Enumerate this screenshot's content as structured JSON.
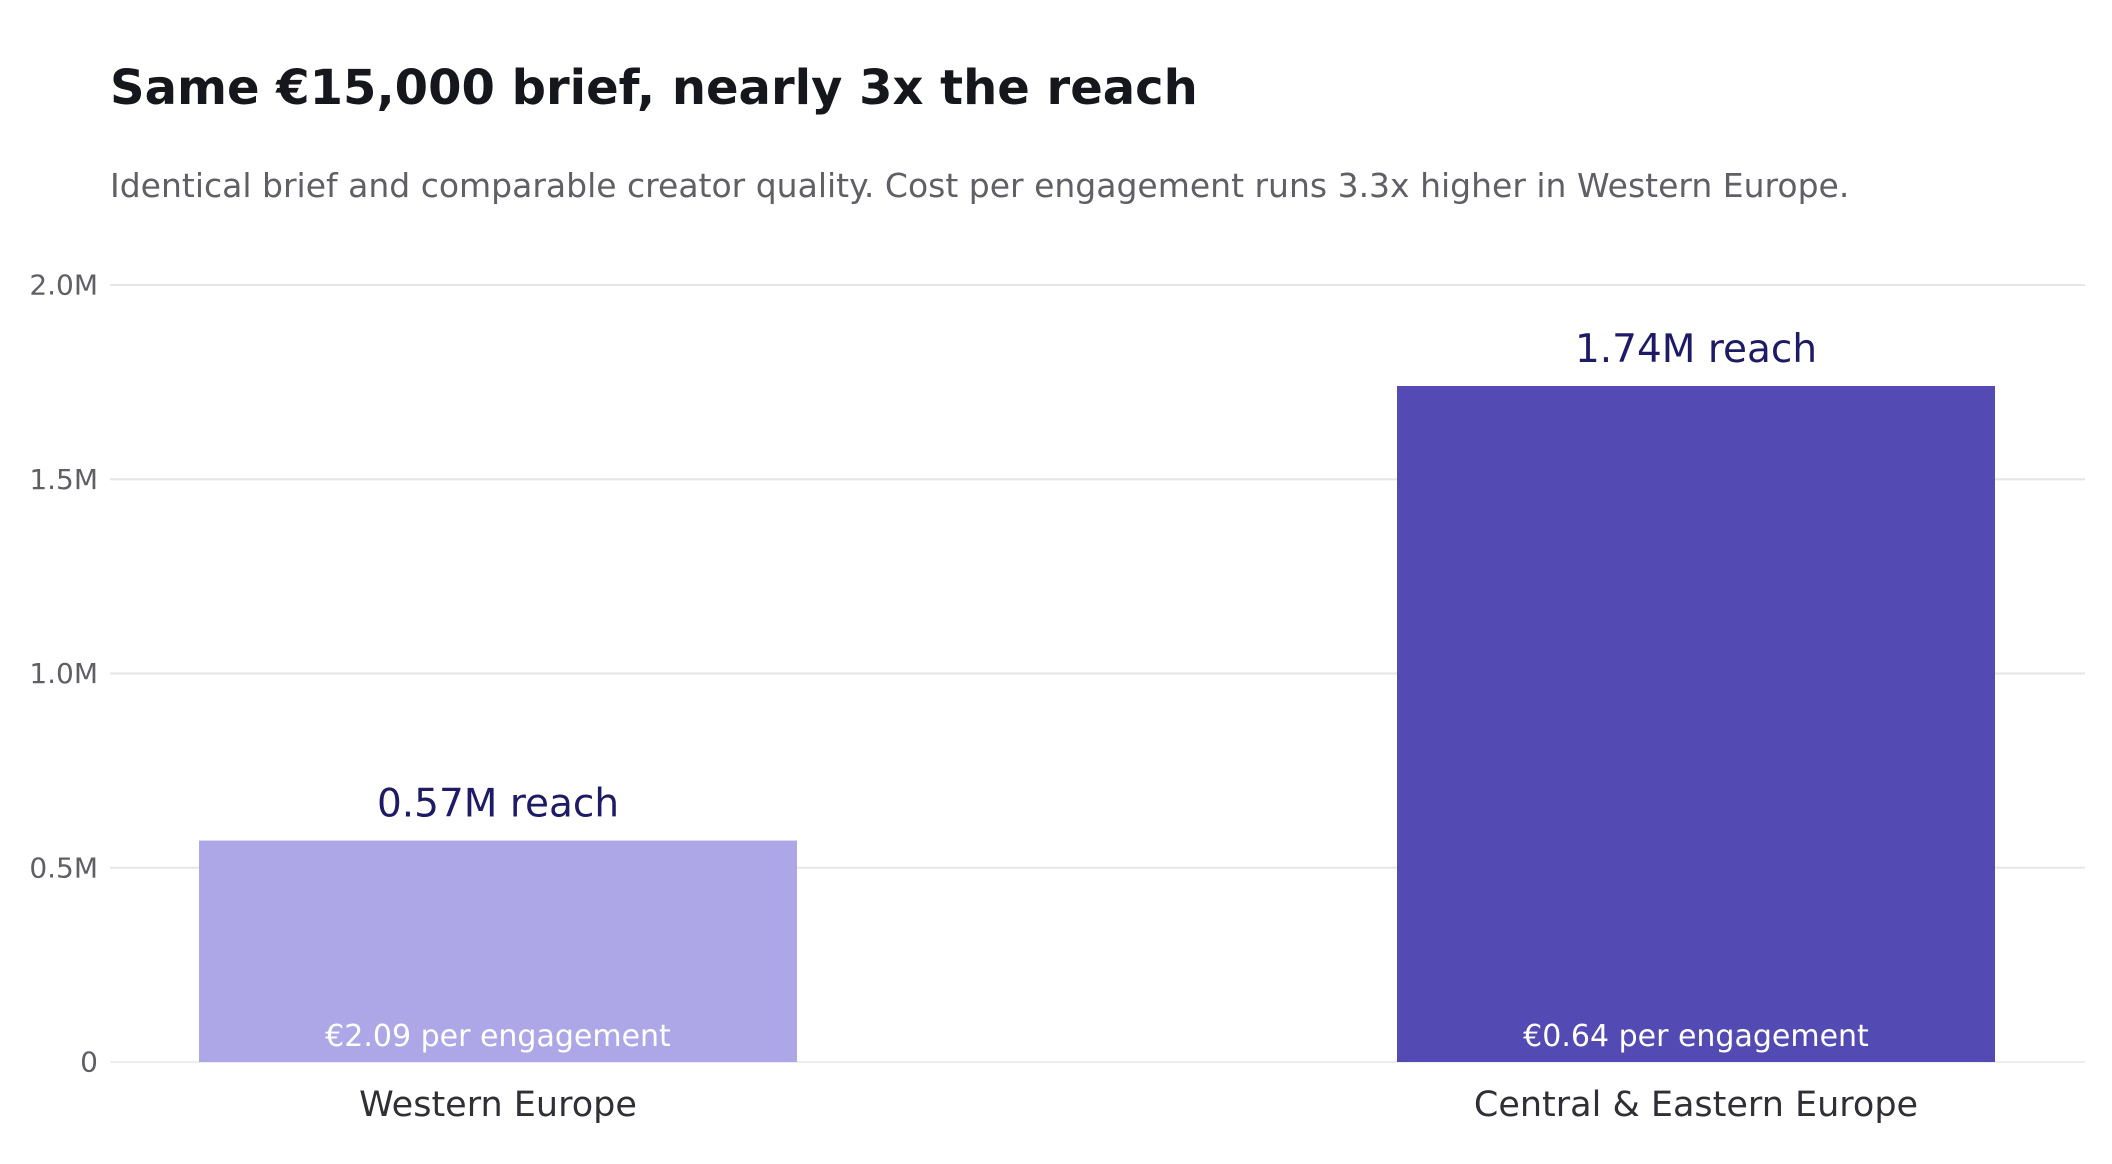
{
  "header": {
    "title": "Same €15,000 brief, nearly 3x the reach",
    "subtitle": "Identical brief and comparable creator quality. Cost per engagement runs 3.3x higher in Western Europe."
  },
  "chart_data": {
    "type": "bar",
    "title": "Same €15,000 brief, nearly 3x the reach",
    "subtitle": "Identical brief and comparable creator quality. Cost per engagement runs 3.3x higher in Western Europe.",
    "xlabel": "",
    "ylabel": "",
    "categories": [
      "Western Europe",
      "Central & Eastern Europe"
    ],
    "values": [
      0.57,
      1.74
    ],
    "value_labels": [
      "0.57M reach",
      "1.74M reach"
    ],
    "inner_labels": [
      "€2.09 per engagement",
      "€0.64 per engagement"
    ],
    "colors": [
      "#ada7e8",
      "#534bb3"
    ],
    "value_label_color": "#1e1b66",
    "ylim": [
      0,
      2.0
    ],
    "yticks": [
      0,
      0.5,
      1.0,
      1.5,
      2.0
    ],
    "ytick_labels": [
      "0",
      "0.5M",
      "1.0M",
      "1.5M",
      "2.0M"
    ],
    "grid": true,
    "legend": "none"
  }
}
